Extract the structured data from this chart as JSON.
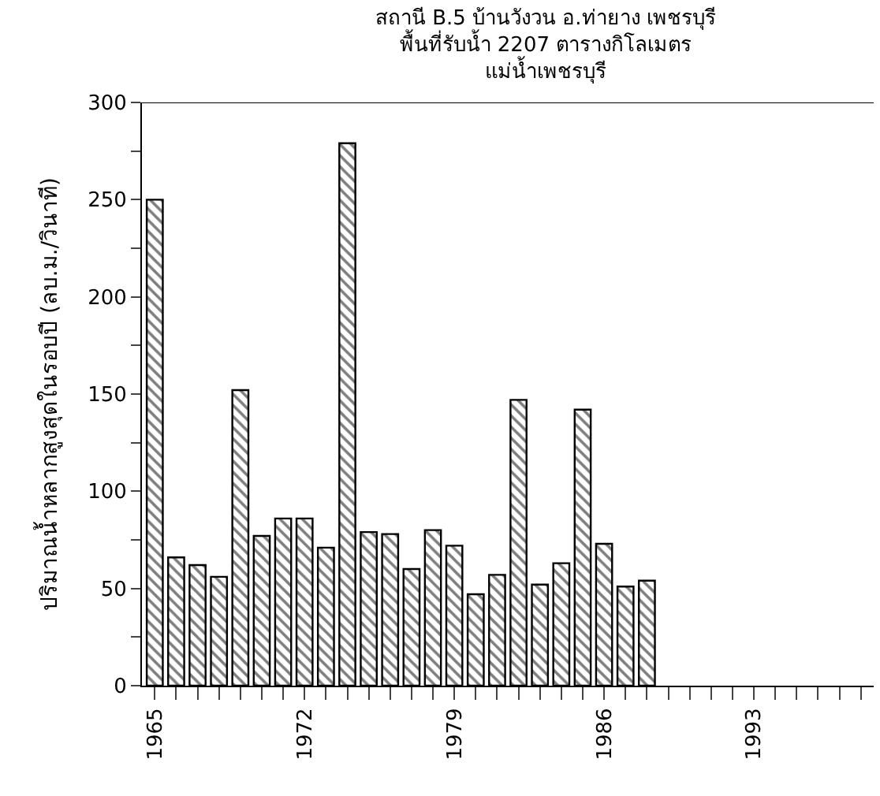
{
  "chart_data": {
    "type": "bar",
    "title": "สถานี B.5 บ้านวังวน อ.ท่ายาง เพชรบุรี\nพื้นที่รับน้ำ 2207 ตารางกิโลเมตร\nแม่น้ำเพชรบุรี",
    "ylabel": "ปริมาณน้ำหลากสูงสุดในรอบปี (ลบ.ม./วินาที)",
    "x": [
      1965,
      1966,
      1967,
      1968,
      1969,
      1970,
      1971,
      1972,
      1973,
      1974,
      1975,
      1976,
      1977,
      1978,
      1979,
      1980,
      1981,
      1982,
      1983,
      1984,
      1985,
      1986,
      1987,
      1988
    ],
    "values": [
      250,
      66,
      62,
      56,
      152,
      77,
      86,
      86,
      71,
      279,
      79,
      78,
      60,
      80,
      72,
      47,
      57,
      147,
      52,
      63,
      142,
      73,
      51,
      54
    ],
    "color": "#000000",
    "xlim": [
      1964.4,
      1998.6
    ],
    "xticks": [
      1965,
      {
        "value": 1966,
        "label": null
      },
      {
        "value": 1967,
        "label": null
      },
      {
        "value": 1968,
        "label": null
      },
      {
        "value": 1969,
        "label": null
      },
      {
        "value": 1970,
        "label": null
      },
      {
        "value": 1971,
        "label": null
      },
      1972,
      {
        "value": 1973,
        "label": null
      },
      {
        "value": 1974,
        "label": null
      },
      {
        "value": 1975,
        "label": null
      },
      {
        "value": 1976,
        "label": null
      },
      {
        "value": 1977,
        "label": null
      },
      {
        "value": 1978,
        "label": null
      },
      1979,
      {
        "value": 1980,
        "label": null
      },
      {
        "value": 1981,
        "label": null
      },
      {
        "value": 1982,
        "label": null
      },
      {
        "value": 1983,
        "label": null
      },
      {
        "value": 1984,
        "label": null
      },
      {
        "value": 1985,
        "label": null
      },
      1986,
      {
        "value": 1987,
        "label": null
      },
      {
        "value": 1988,
        "label": null
      },
      {
        "value": 1989,
        "label": null
      },
      {
        "value": 1990,
        "label": null
      },
      {
        "value": 1991,
        "label": null
      },
      {
        "value": 1992,
        "label": null
      },
      1993,
      {
        "value": 1994,
        "label": null
      },
      {
        "value": 1995,
        "label": null
      },
      {
        "value": 1996,
        "label": null
      },
      {
        "value": 1997,
        "label": null
      },
      {
        "value": 1998,
        "label": null
      }
    ],
    "ylim": [
      0,
      300
    ],
    "yticks": [
      0,
      {
        "value": 25,
        "label": null
      },
      50,
      {
        "value": 75,
        "label": null
      },
      100,
      {
        "value": 125,
        "label": null
      },
      150,
      {
        "value": 175,
        "label": null
      },
      200,
      {
        "value": 225,
        "label": null
      },
      250,
      {
        "value": 275,
        "label": null
      },
      300
    ],
    "legend": false
  }
}
